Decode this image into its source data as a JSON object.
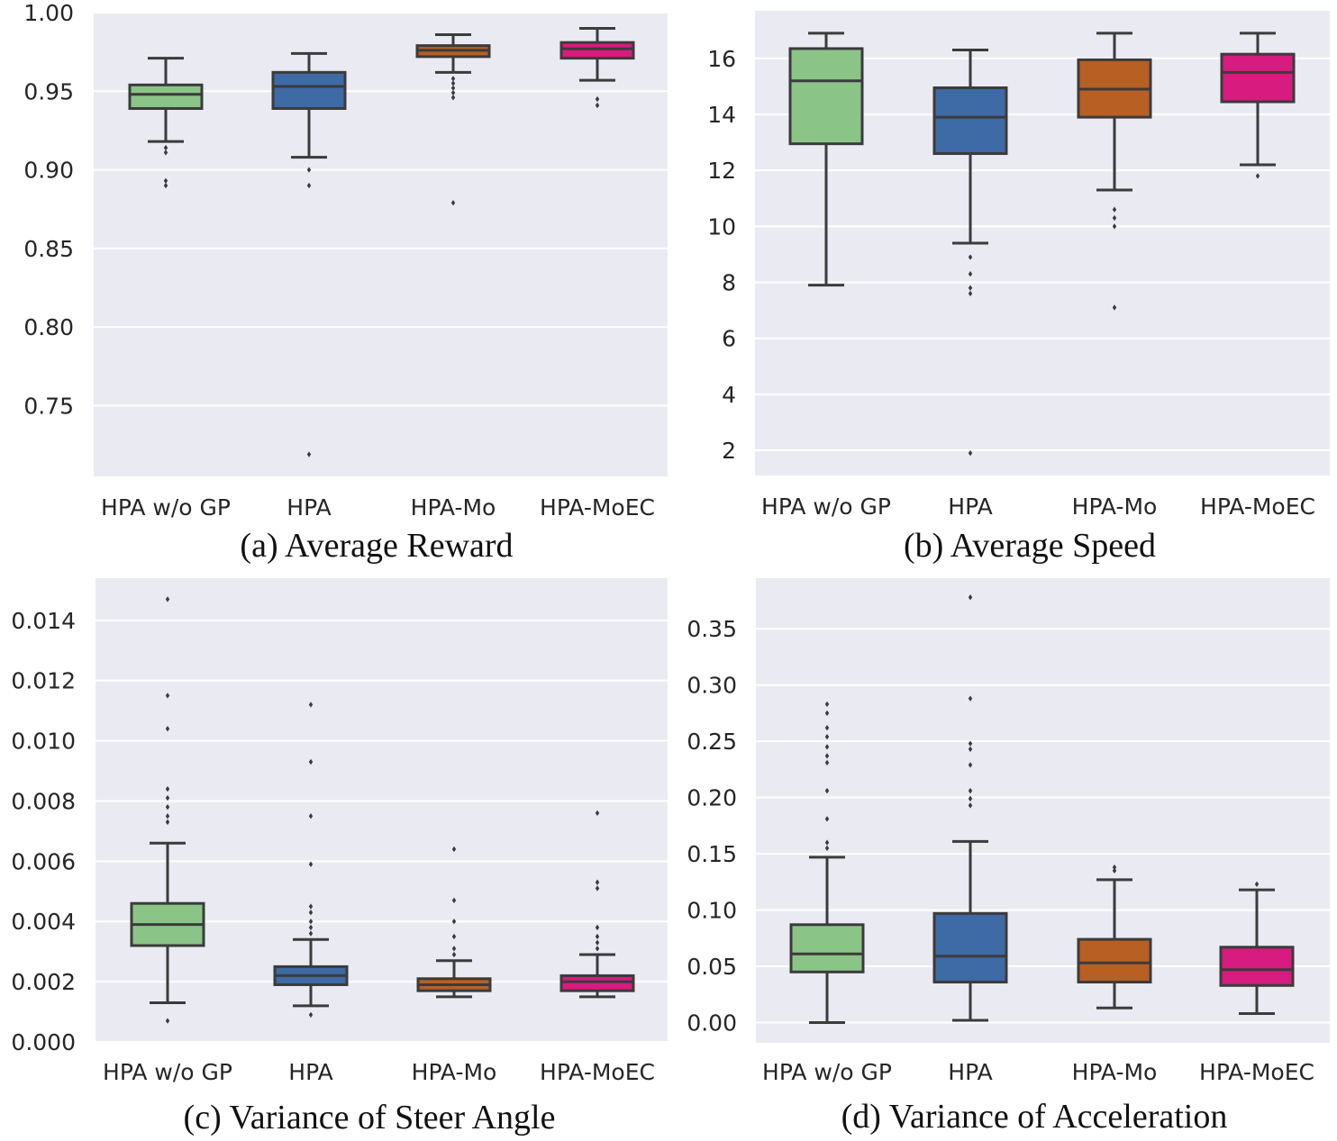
{
  "chart_data": [
    {
      "type": "box",
      "caption": "(a) Average Reward",
      "categories": [
        "HPA w/o GP",
        "HPA",
        "HPA-Mo",
        "HPA-MoEC"
      ],
      "colors": [
        "#8bc487",
        "#3e6aa5",
        "#b85f24",
        "#d81b7f"
      ],
      "ylim": [
        0.705,
        1.0
      ],
      "yticks": [
        0.75,
        0.8,
        0.85,
        0.9,
        0.95,
        1.0
      ],
      "ytick_labels": [
        "0.75",
        "0.80",
        "0.85",
        "0.90",
        "0.95",
        "1.00"
      ],
      "boxes": [
        {
          "whislo": 0.918,
          "q1": 0.939,
          "med": 0.948,
          "q3": 0.954,
          "whishi": 0.971,
          "fliers": [
            0.914,
            0.911,
            0.893,
            0.89
          ]
        },
        {
          "whislo": 0.908,
          "q1": 0.939,
          "med": 0.953,
          "q3": 0.962,
          "whishi": 0.974,
          "fliers": [
            0.9,
            0.89,
            0.719
          ]
        },
        {
          "whislo": 0.962,
          "q1": 0.972,
          "med": 0.976,
          "q3": 0.979,
          "whishi": 0.986,
          "fliers": [
            0.958,
            0.955,
            0.952,
            0.949,
            0.946,
            0.879
          ]
        },
        {
          "whislo": 0.957,
          "q1": 0.971,
          "med": 0.977,
          "q3": 0.981,
          "whishi": 0.99,
          "fliers": [
            0.945,
            0.941
          ]
        }
      ]
    },
    {
      "type": "box",
      "caption": "(b) Average Speed",
      "categories": [
        "HPA w/o GP",
        "HPA",
        "HPA-Mo",
        "HPA-MoEC"
      ],
      "colors": [
        "#8bc487",
        "#3e6aa5",
        "#b85f24",
        "#d81b7f"
      ],
      "ylim": [
        1.1,
        17.7
      ],
      "yticks": [
        2,
        4,
        6,
        8,
        10,
        12,
        14,
        16
      ],
      "ytick_labels": [
        "2",
        "4",
        "6",
        "8",
        "10",
        "12",
        "14",
        "16"
      ],
      "boxes": [
        {
          "whislo": 7.9,
          "q1": 12.95,
          "med": 15.2,
          "q3": 16.35,
          "whishi": 16.9,
          "fliers": []
        },
        {
          "whislo": 9.4,
          "q1": 12.6,
          "med": 13.9,
          "q3": 14.95,
          "whishi": 16.3,
          "fliers": [
            8.9,
            8.3,
            7.8,
            7.6,
            1.9
          ]
        },
        {
          "whislo": 11.3,
          "q1": 13.9,
          "med": 14.9,
          "q3": 15.95,
          "whishi": 16.9,
          "fliers": [
            10.6,
            10.3,
            10.0,
            7.1
          ]
        },
        {
          "whislo": 12.2,
          "q1": 14.45,
          "med": 15.5,
          "q3": 16.15,
          "whishi": 16.9,
          "fliers": [
            11.8
          ]
        }
      ]
    },
    {
      "type": "box",
      "caption": "(c) Variance of Steer Angle",
      "categories": [
        "HPA w/o GP",
        "HPA",
        "HPA-Mo",
        "HPA-MoEC"
      ],
      "colors": [
        "#8bc487",
        "#3e6aa5",
        "#b85f24",
        "#d81b7f"
      ],
      "ylim": [
        0.0,
        0.0154
      ],
      "yticks": [
        0.0,
        0.002,
        0.004,
        0.006,
        0.008,
        0.01,
        0.012,
        0.014
      ],
      "ytick_labels": [
        "0.000",
        "0.002",
        "0.004",
        "0.006",
        "0.008",
        "0.010",
        "0.012",
        "0.014"
      ],
      "boxes": [
        {
          "whislo": 0.0013,
          "q1": 0.0032,
          "med": 0.0039,
          "q3": 0.0046,
          "whishi": 0.0066,
          "fliers": [
            0.0007,
            0.0073,
            0.0075,
            0.0078,
            0.0081,
            0.0084,
            0.0104,
            0.0115,
            0.0147
          ]
        },
        {
          "whislo": 0.0012,
          "q1": 0.0019,
          "med": 0.0022,
          "q3": 0.0025,
          "whishi": 0.0034,
          "fliers": [
            0.0009,
            0.0036,
            0.0038,
            0.004,
            0.0043,
            0.0045,
            0.0059,
            0.0075,
            0.0093,
            0.0112
          ]
        },
        {
          "whislo": 0.0015,
          "q1": 0.0017,
          "med": 0.0019,
          "q3": 0.0021,
          "whishi": 0.0027,
          "fliers": [
            0.0029,
            0.0031,
            0.0035,
            0.004,
            0.0047,
            0.0064
          ]
        },
        {
          "whislo": 0.0015,
          "q1": 0.0017,
          "med": 0.002,
          "q3": 0.0022,
          "whishi": 0.0029,
          "fliers": [
            0.0031,
            0.0033,
            0.0035,
            0.0038,
            0.0051,
            0.0053,
            0.0076
          ]
        }
      ]
    },
    {
      "type": "box",
      "caption": "(d) Variance of Acceleration",
      "categories": [
        "HPA w/o GP",
        "HPA",
        "HPA-Mo",
        "HPA-MoEC"
      ],
      "colors": [
        "#8bc487",
        "#3e6aa5",
        "#b85f24",
        "#d81b7f"
      ],
      "ylim": [
        -0.018,
        0.395
      ],
      "yticks": [
        0.0,
        0.05,
        0.1,
        0.15,
        0.2,
        0.25,
        0.3,
        0.35
      ],
      "ytick_labels": [
        "0.00",
        "0.05",
        "0.10",
        "0.15",
        "0.20",
        "0.25",
        "0.30",
        "0.35"
      ],
      "boxes": [
        {
          "whislo": 0.0,
          "q1": 0.045,
          "med": 0.061,
          "q3": 0.087,
          "whishi": 0.147,
          "fliers": [
            0.155,
            0.16,
            0.181,
            0.206,
            0.231,
            0.237,
            0.245,
            0.254,
            0.262,
            0.275,
            0.283
          ]
        },
        {
          "whislo": 0.002,
          "q1": 0.036,
          "med": 0.059,
          "q3": 0.097,
          "whishi": 0.161,
          "fliers": [
            0.193,
            0.199,
            0.206,
            0.229,
            0.243,
            0.248,
            0.288,
            0.378
          ]
        },
        {
          "whislo": 0.013,
          "q1": 0.036,
          "med": 0.053,
          "q3": 0.074,
          "whishi": 0.127,
          "fliers": [
            0.135,
            0.138
          ]
        },
        {
          "whislo": 0.008,
          "q1": 0.033,
          "med": 0.047,
          "q3": 0.067,
          "whishi": 0.118,
          "fliers": [
            0.123
          ]
        }
      ]
    }
  ]
}
